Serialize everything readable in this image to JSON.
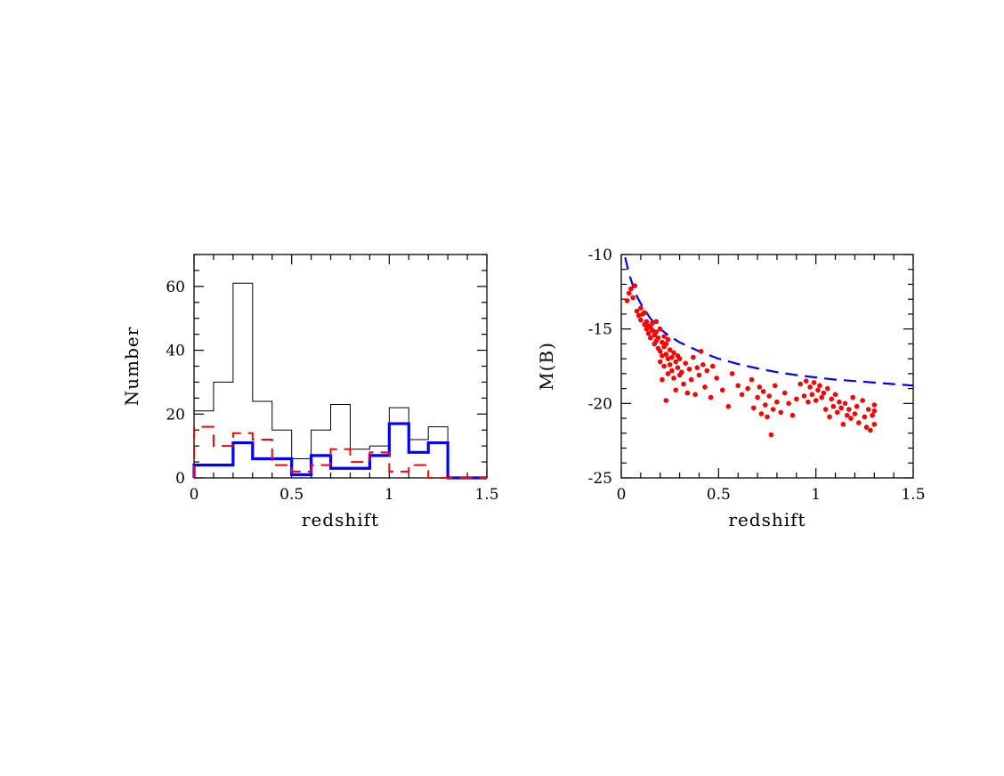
{
  "chart_data": [
    {
      "type": "histogram",
      "xlabel": "redshift",
      "ylabel": "Number",
      "xlim": [
        0,
        1.5
      ],
      "ylim": [
        0,
        70
      ],
      "xticks": [
        "0",
        "0.5",
        "1",
        "1.5"
      ],
      "yticks": [
        "0",
        "20",
        "40",
        "60"
      ],
      "bin_edges": [
        0,
        0.1,
        0.2,
        0.3,
        0.4,
        0.5,
        0.6,
        0.7,
        0.8,
        0.9,
        1.0,
        1.1,
        1.2,
        1.3,
        1.4,
        1.5
      ],
      "series": [
        {
          "style": "thin-solid",
          "color": "#000000",
          "values": [
            21,
            30,
            61,
            24,
            15,
            6,
            15,
            23,
            9,
            10,
            22,
            12,
            16,
            0,
            0
          ]
        },
        {
          "style": "thick-solid",
          "color": "#0000ff",
          "values": [
            4,
            4,
            11,
            6,
            6,
            1,
            7,
            3,
            3,
            7,
            17,
            8,
            11,
            0,
            0
          ]
        },
        {
          "style": "dashed",
          "color": "#ff0000",
          "values": [
            16,
            10,
            14,
            12,
            4,
            2,
            4,
            9,
            5,
            8,
            2,
            4,
            0,
            0,
            0
          ]
        }
      ]
    },
    {
      "type": "scatter",
      "xlabel": "redshift",
      "ylabel": "M(B)",
      "xlim": [
        0,
        1.5
      ],
      "ylim": [
        -25,
        -10
      ],
      "xticks": [
        "0",
        "0.5",
        "1",
        "1.5"
      ],
      "yticks": [
        "-25",
        "-20",
        "-15",
        "-10"
      ],
      "points_color": "#ff0000",
      "curve": {
        "style": "dashed",
        "color": "#0000ff",
        "x": [
          0.02,
          0.04,
          0.06,
          0.08,
          0.1,
          0.15,
          0.2,
          0.25,
          0.3,
          0.4,
          0.5,
          0.6,
          0.7,
          0.8,
          0.9,
          1.0,
          1.1,
          1.2,
          1.3,
          1.4,
          1.5
        ],
        "y": [
          -10.2,
          -11.3,
          -12.1,
          -12.8,
          -13.3,
          -14.3,
          -15.0,
          -15.5,
          -15.9,
          -16.5,
          -17.0,
          -17.35,
          -17.65,
          -17.9,
          -18.1,
          -18.25,
          -18.4,
          -18.5,
          -18.6,
          -18.7,
          -18.8
        ]
      },
      "points": [
        [
          0.03,
          -13.1
        ],
        [
          0.04,
          -12.6
        ],
        [
          0.05,
          -12.3
        ],
        [
          0.06,
          -12.9
        ],
        [
          0.07,
          -12.1
        ],
        [
          0.08,
          -13.8
        ],
        [
          0.09,
          -14.1
        ],
        [
          0.1,
          -13.6
        ],
        [
          0.1,
          -14.4
        ],
        [
          0.11,
          -14.0
        ],
        [
          0.12,
          -14.7
        ],
        [
          0.12,
          -13.9
        ],
        [
          0.13,
          -14.5
        ],
        [
          0.13,
          -15.0
        ],
        [
          0.14,
          -14.8
        ],
        [
          0.14,
          -15.3
        ],
        [
          0.15,
          -14.9
        ],
        [
          0.15,
          -15.6
        ],
        [
          0.16,
          -15.1
        ],
        [
          0.16,
          -14.6
        ],
        [
          0.17,
          -15.4
        ],
        [
          0.17,
          -16.0
        ],
        [
          0.18,
          -15.2
        ],
        [
          0.18,
          -15.8
        ],
        [
          0.18,
          -14.5
        ],
        [
          0.19,
          -15.6
        ],
        [
          0.19,
          -16.3
        ],
        [
          0.2,
          -15.0
        ],
        [
          0.2,
          -16.5
        ],
        [
          0.2,
          -17.2
        ],
        [
          0.21,
          -15.9
        ],
        [
          0.21,
          -16.8
        ],
        [
          0.21,
          -18.4
        ],
        [
          0.22,
          -15.5
        ],
        [
          0.22,
          -16.2
        ],
        [
          0.22,
          -17.5
        ],
        [
          0.23,
          -16.0
        ],
        [
          0.23,
          -16.7
        ],
        [
          0.23,
          -19.8
        ],
        [
          0.24,
          -15.7
        ],
        [
          0.24,
          -17.0
        ],
        [
          0.24,
          -18.0
        ],
        [
          0.25,
          -16.4
        ],
        [
          0.25,
          -17.4
        ],
        [
          0.26,
          -16.9
        ],
        [
          0.26,
          -17.8
        ],
        [
          0.27,
          -16.6
        ],
        [
          0.27,
          -18.3
        ],
        [
          0.28,
          -17.2
        ],
        [
          0.28,
          -19.1
        ],
        [
          0.29,
          -16.8
        ],
        [
          0.29,
          -17.6
        ],
        [
          0.3,
          -18.1
        ],
        [
          0.3,
          -17.0
        ],
        [
          0.31,
          -17.9
        ],
        [
          0.32,
          -18.7
        ],
        [
          0.33,
          -17.3
        ],
        [
          0.34,
          -19.3
        ],
        [
          0.35,
          -17.7
        ],
        [
          0.36,
          -18.4
        ],
        [
          0.37,
          -16.9
        ],
        [
          0.38,
          -19.4
        ],
        [
          0.39,
          -17.6
        ],
        [
          0.4,
          -18.1
        ],
        [
          0.41,
          -16.5
        ],
        [
          0.42,
          -17.4
        ],
        [
          0.43,
          -18.9
        ],
        [
          0.44,
          -17.8
        ],
        [
          0.46,
          -19.6
        ],
        [
          0.47,
          -17.5
        ],
        [
          0.49,
          -18.3
        ],
        [
          0.52,
          -19.1
        ],
        [
          0.55,
          -20.2
        ],
        [
          0.57,
          -18.0
        ],
        [
          0.6,
          -18.8
        ],
        [
          0.62,
          -19.4
        ],
        [
          0.65,
          -19.0
        ],
        [
          0.67,
          -18.4
        ],
        [
          0.68,
          -20.3
        ],
        [
          0.7,
          -19.6
        ],
        [
          0.71,
          -18.9
        ],
        [
          0.72,
          -20.7
        ],
        [
          0.73,
          -19.2
        ],
        [
          0.74,
          -20.1
        ],
        [
          0.75,
          -20.9
        ],
        [
          0.76,
          -19.5
        ],
        [
          0.77,
          -22.1
        ],
        [
          0.78,
          -20.4
        ],
        [
          0.79,
          -18.8
        ],
        [
          0.8,
          -19.9
        ],
        [
          0.82,
          -20.6
        ],
        [
          0.84,
          -19.3
        ],
        [
          0.86,
          -20.0
        ],
        [
          0.88,
          -20.8
        ],
        [
          0.9,
          -19.7
        ],
        [
          0.92,
          -18.7
        ],
        [
          0.94,
          -19.5
        ],
        [
          0.95,
          -18.5
        ],
        [
          0.96,
          -19.9
        ],
        [
          0.97,
          -18.9
        ],
        [
          0.98,
          -19.4
        ],
        [
          0.99,
          -18.6
        ],
        [
          1.0,
          -19.8
        ],
        [
          1.01,
          -19.1
        ],
        [
          1.02,
          -18.8
        ],
        [
          1.03,
          -19.6
        ],
        [
          1.04,
          -19.3
        ],
        [
          1.05,
          -20.4
        ],
        [
          1.06,
          -19.0
        ],
        [
          1.07,
          -20.9
        ],
        [
          1.08,
          -19.7
        ],
        [
          1.09,
          -20.2
        ],
        [
          1.1,
          -19.4
        ],
        [
          1.11,
          -20.6
        ],
        [
          1.12,
          -19.9
        ],
        [
          1.13,
          -20.3
        ],
        [
          1.14,
          -21.4
        ],
        [
          1.15,
          -20.0
        ],
        [
          1.16,
          -20.8
        ],
        [
          1.17,
          -20.4
        ],
        [
          1.18,
          -21.0
        ],
        [
          1.19,
          -19.6
        ],
        [
          1.2,
          -20.7
        ],
        [
          1.21,
          -20.2
        ],
        [
          1.22,
          -21.3
        ],
        [
          1.24,
          -19.8
        ],
        [
          1.25,
          -20.9
        ],
        [
          1.26,
          -21.6
        ],
        [
          1.27,
          -20.4
        ],
        [
          1.28,
          -21.8
        ],
        [
          1.29,
          -20.8
        ],
        [
          1.3,
          -21.4
        ],
        [
          1.3,
          -20.1
        ],
        [
          1.3,
          -20.5
        ]
      ]
    }
  ]
}
